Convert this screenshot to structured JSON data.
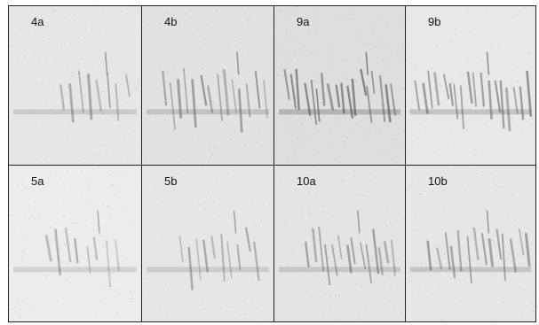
{
  "panels": [
    {
      "label": "4a"
    },
    {
      "label": "4b"
    },
    {
      "label": "9a"
    },
    {
      "label": "9b"
    },
    {
      "label": "5a"
    },
    {
      "label": "5b"
    },
    {
      "label": "10a"
    },
    {
      "label": "10b"
    }
  ]
}
